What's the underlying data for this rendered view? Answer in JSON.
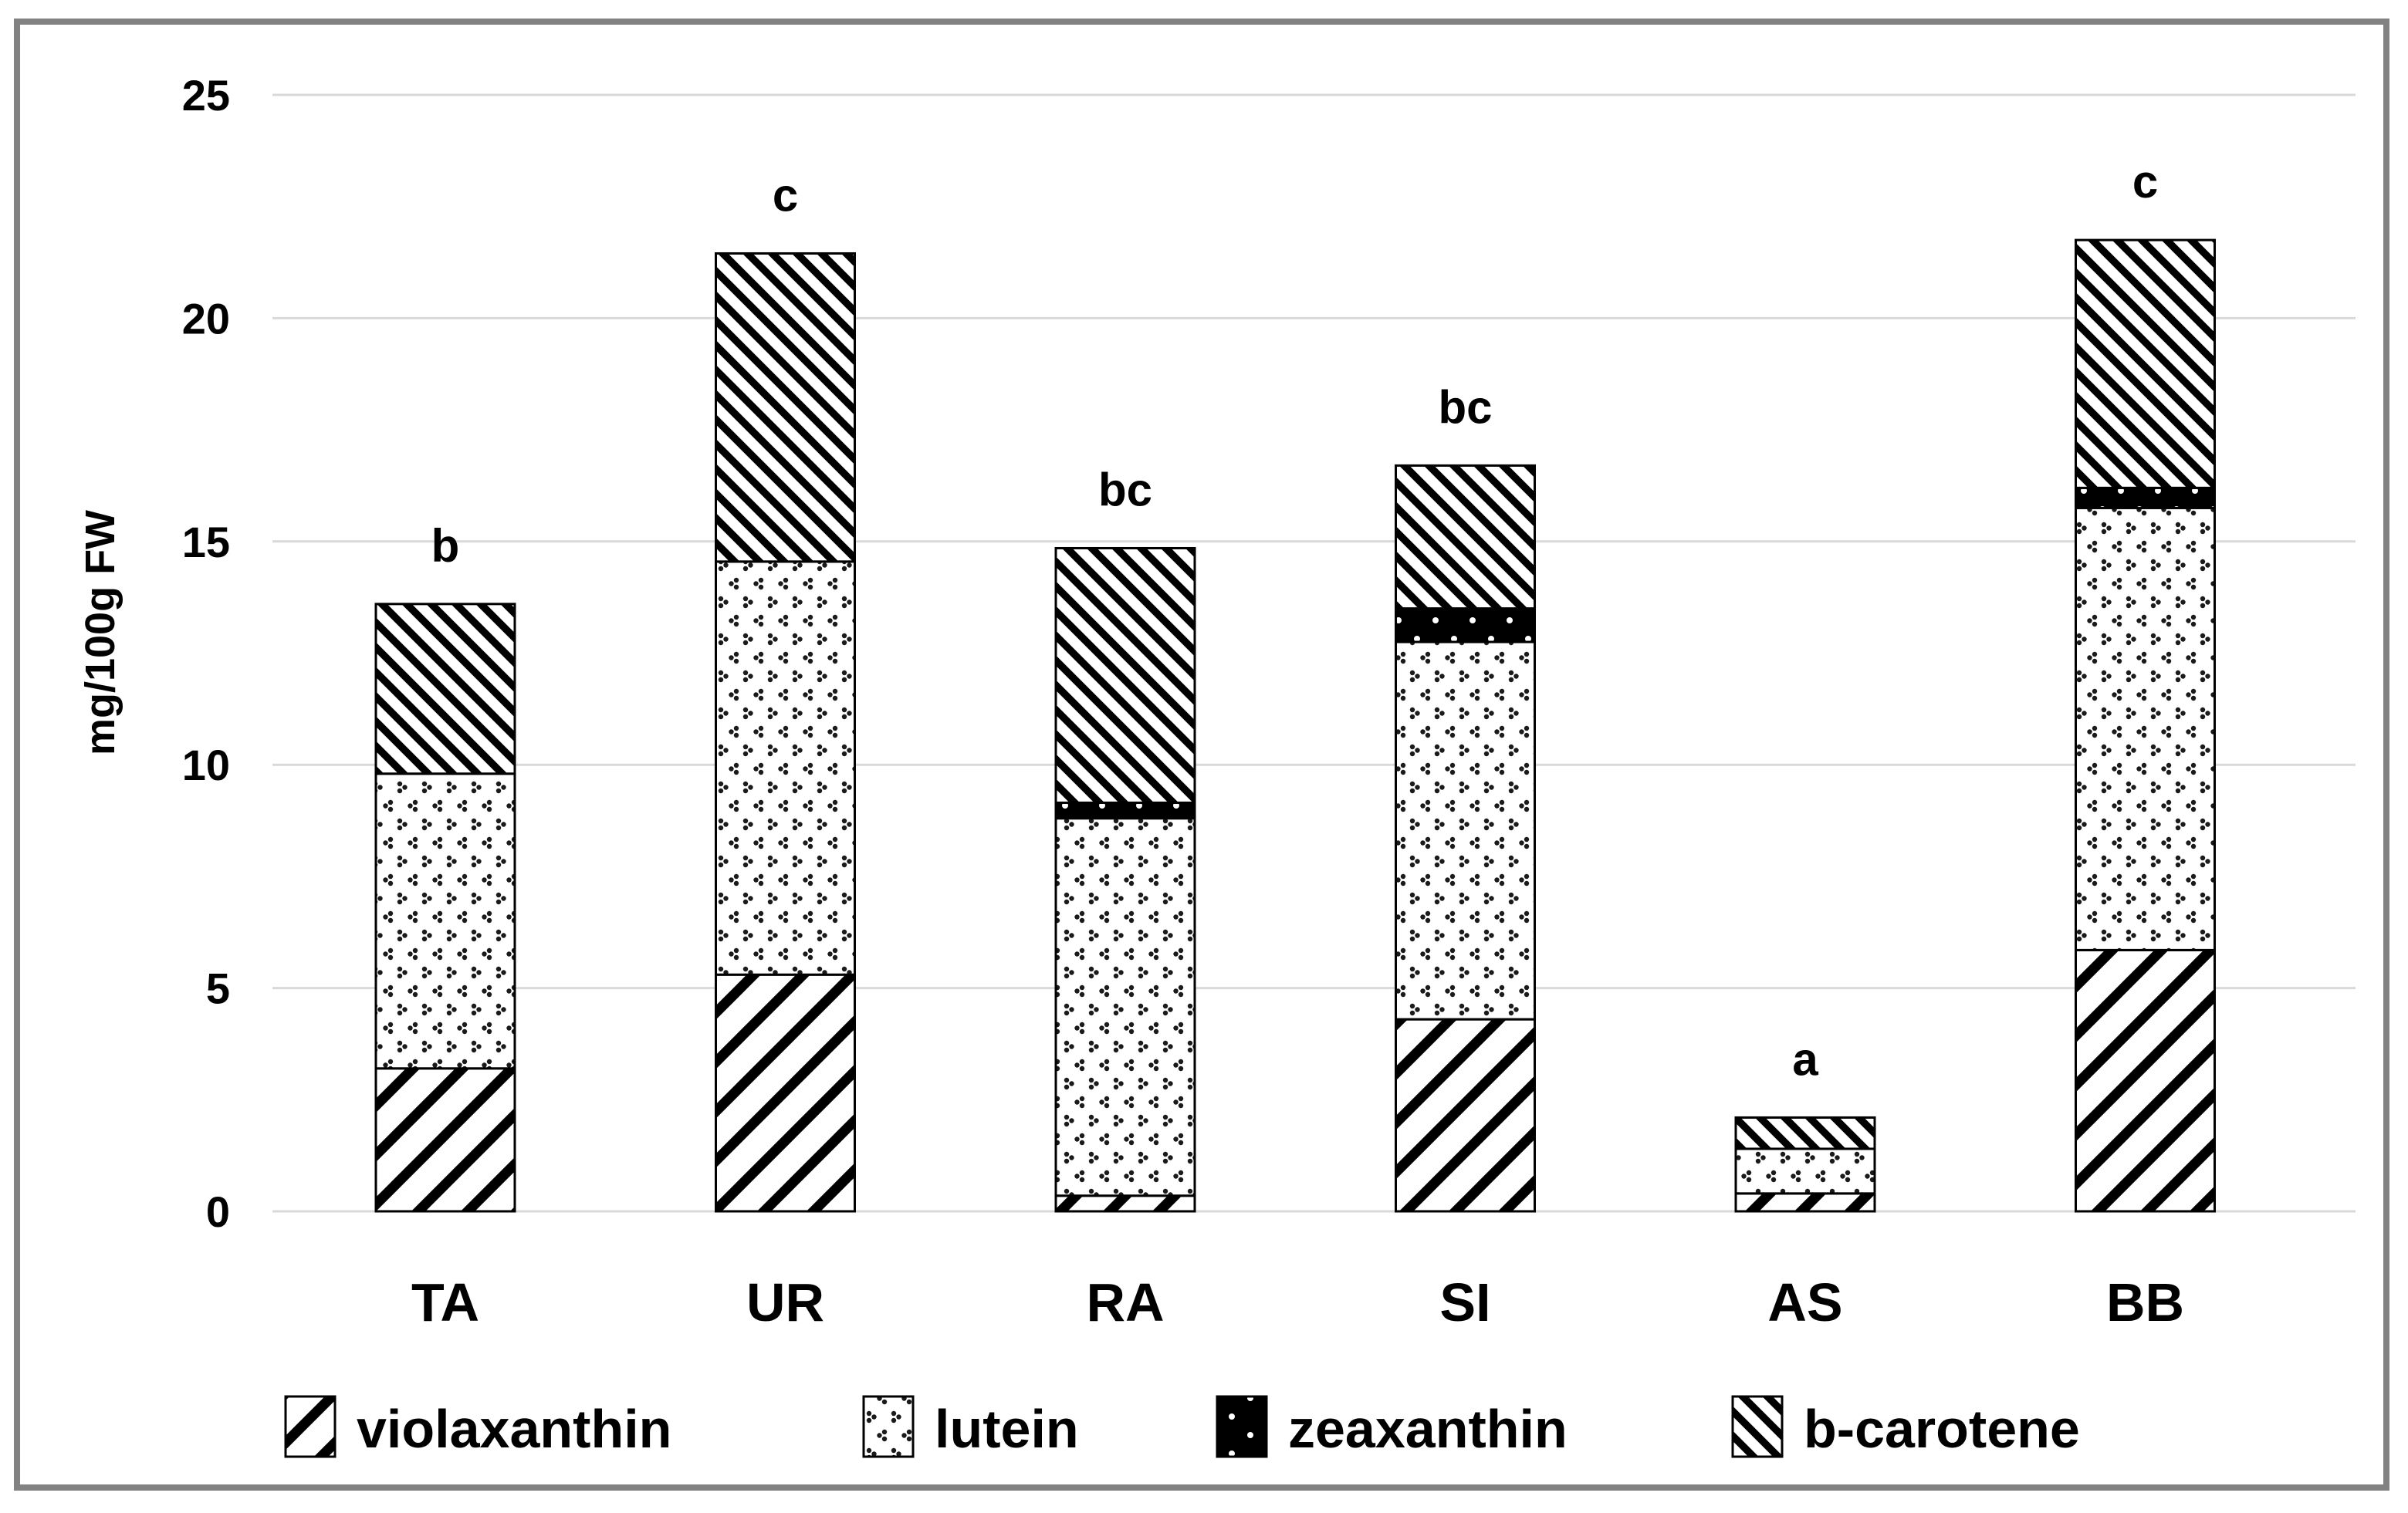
{
  "figure": {
    "background": "#ffffff",
    "border_color": "#828282",
    "gridline_color": "#d9d9d9",
    "bar_outline_color": "#000000"
  },
  "chart_data": {
    "type": "bar",
    "stacked": true,
    "title": "",
    "xlabel": "",
    "ylabel": "mg/100g FW",
    "ylim": [
      0,
      25
    ],
    "yticks": [
      0,
      5,
      10,
      15,
      20,
      25
    ],
    "grid": "horizontal",
    "legend_position": "bottom",
    "categories": [
      "TA",
      "UR",
      "RA",
      "SI",
      "AS",
      "BB"
    ],
    "significance_letters": [
      "b",
      "c",
      "bc",
      "bc",
      "a",
      "c"
    ],
    "series": [
      {
        "name": "violaxanthin",
        "pattern": "diagonal-up-hatch",
        "values": [
          3.2,
          5.3,
          0.35,
          4.3,
          0.4,
          5.85
        ]
      },
      {
        "name": "lutein",
        "pattern": "chevron-dots",
        "values": [
          6.6,
          9.25,
          8.45,
          8.45,
          1.0,
          9.9
        ]
      },
      {
        "name": "zeaxanthin",
        "pattern": "black-white-dots",
        "values": [
          0,
          0,
          0.35,
          0.75,
          0,
          0.45
        ]
      },
      {
        "name": "b-carotene",
        "pattern": "diagonal-down-hatch",
        "values": [
          3.8,
          6.9,
          5.7,
          3.2,
          0.7,
          5.55
        ]
      }
    ],
    "totals": [
      13.6,
      21.45,
      14.85,
      16.7,
      2.1,
      21.75
    ]
  }
}
